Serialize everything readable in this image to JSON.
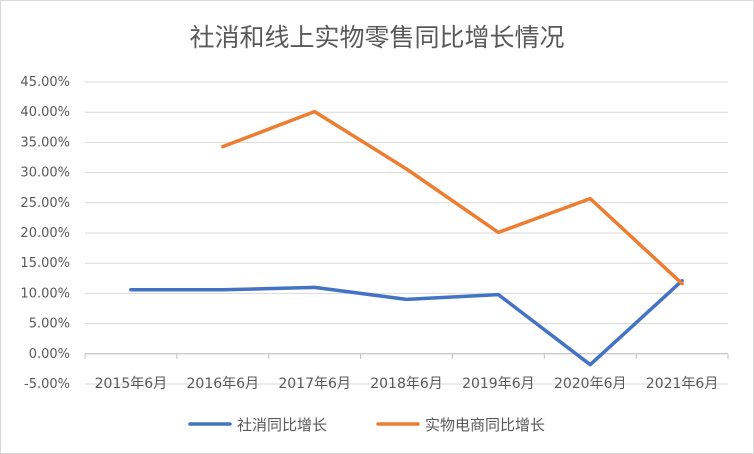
{
  "chart_data": {
    "type": "line",
    "title": "社消和线上实物零售同比增长情况",
    "categories": [
      "2015年6月",
      "2016年6月",
      "2017年6月",
      "2018年6月",
      "2019年6月",
      "2020年6月",
      "2021年6月"
    ],
    "yticks": [
      "-5.00%",
      "0.00%",
      "5.00%",
      "10.00%",
      "15.00%",
      "20.00%",
      "25.00%",
      "30.00%",
      "35.00%",
      "40.00%",
      "45.00%"
    ],
    "ylim": [
      -5,
      45
    ],
    "grid": true,
    "legend_position": "bottom",
    "series": [
      {
        "name": "社消同比增长",
        "color": "#4472C4",
        "values": [
          10.6,
          10.6,
          11.0,
          9.0,
          9.8,
          -1.8,
          12.1
        ]
      },
      {
        "name": "实物电商同比增长",
        "color": "#ED7D31",
        "values": [
          null,
          34.3,
          40.1,
          30.6,
          20.1,
          25.7,
          11.6
        ]
      }
    ]
  }
}
